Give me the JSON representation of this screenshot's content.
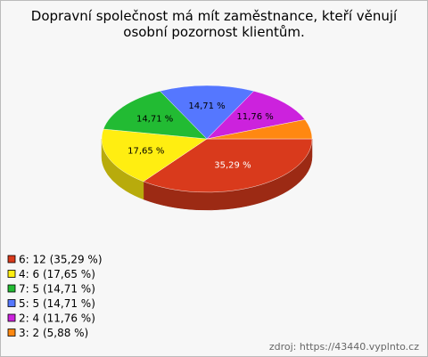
{
  "chart_data": {
    "type": "pie",
    "title": "Dopravní společnost má mít zaměstnance, kteří věnují osobní pozornost klientům.",
    "categories": [
      "6: 12 (35,29 %)",
      "4: 6 (17,65 %)",
      "7: 5 (14,71 %)",
      "5: 5 (14,71 %)",
      "2: 4 (11,76 %)",
      "3: 2 (5,88 %)"
    ],
    "values": [
      35.29,
      17.65,
      14.71,
      14.71,
      11.76,
      5.88
    ],
    "value_labels": [
      "35,29 %",
      "17,65 %",
      "14,71 %",
      "14,71 %",
      "11,76 %",
      null
    ],
    "colors": [
      "#d93a1c",
      "#ffee11",
      "#22bb33",
      "#5577ff",
      "#cc22dd",
      "#ff8811"
    ],
    "source": "zdroj: https://43440.vyplnto.cz"
  }
}
